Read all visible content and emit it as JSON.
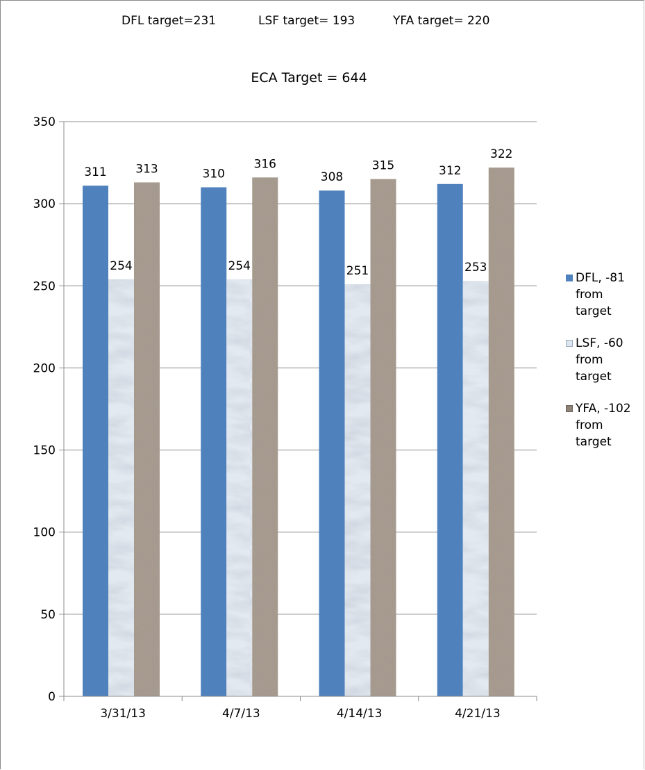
{
  "header": {
    "dfl_target": "DFL target=231",
    "lsf_target": "LSF target= 193",
    "yfa_target": "YFA target= 220",
    "eca_target": "ECA Target = 644"
  },
  "legend": {
    "dfl": "DFL, -81 from target",
    "lsf": "LSF, -60 from target",
    "yfa": "YFA, -102 from target"
  },
  "colors": {
    "dfl": "#4f81bd",
    "lsf_base": "#dde6f0",
    "yfa_base": "#8f8378",
    "grid": "#8c8c8c"
  },
  "chart_data": {
    "type": "bar",
    "categories": [
      "3/31/13",
      "4/7/13",
      "4/14/13",
      "4/21/13"
    ],
    "series": [
      {
        "name": "DFL, -81 from target",
        "values": [
          311,
          310,
          308,
          312
        ]
      },
      {
        "name": "LSF, -60 from target",
        "values": [
          254,
          254,
          251,
          253
        ]
      },
      {
        "name": "YFA, - 102 from target",
        "values": [
          313,
          316,
          315,
          322
        ]
      }
    ],
    "ylim": [
      0,
      350
    ],
    "yticks": [
      0,
      50,
      100,
      150,
      200,
      250,
      300,
      350
    ],
    "grid": true,
    "legend_position": "right",
    "data_labels": true
  }
}
